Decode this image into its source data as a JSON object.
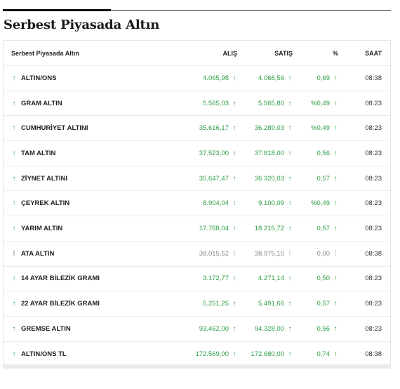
{
  "title": "Serbest Piyasada Altın",
  "colors": {
    "up": "#2e9e45",
    "neutral": "#8a8a8a"
  },
  "table": {
    "headers": {
      "name": "Serbest Piyasada Altın",
      "buy": "ALIŞ",
      "sell": "SATIŞ",
      "pct": "%",
      "time": "SAAT"
    },
    "rows": [
      {
        "name": "ALTIN/ONS",
        "buy": "4.065,98",
        "sell": "4.068,56",
        "pct": "0,69",
        "time": "08:38",
        "trend": "up",
        "icon": "up-arrow-icon"
      },
      {
        "name": "GRAM ALTIN",
        "buy": "5.565,03",
        "sell": "5.565,80",
        "pct": "%0,49",
        "time": "08:23",
        "trend": "up",
        "icon": "up-arrow-icon"
      },
      {
        "name": "CUMHURİYET ALTINI",
        "buy": "35.616,17",
        "sell": "36.289,03",
        "pct": "%0,49",
        "time": "08:23",
        "trend": "up",
        "icon": "up-arrow-icon"
      },
      {
        "name": "TAM ALTIN",
        "buy": "37.523,00",
        "sell": "37.818,00",
        "pct": "0,56",
        "time": "08:23",
        "trend": "up",
        "icon": "up-arrow-icon"
      },
      {
        "name": "ZİYNET ALTINI",
        "buy": "35.647,47",
        "sell": "36.320,03",
        "pct": "0,57",
        "time": "08:23",
        "trend": "up",
        "icon": "up-arrow-icon"
      },
      {
        "name": "ÇEYREK ALTIN",
        "buy": "8.904,04",
        "sell": "9.100,09",
        "pct": "%0,49",
        "time": "08:23",
        "trend": "up",
        "icon": "up-arrow-icon"
      },
      {
        "name": "YARIM ALTIN",
        "buy": "17.768,04",
        "sell": "18.215,72",
        "pct": "0,57",
        "time": "08:23",
        "trend": "up",
        "icon": "up-arrow-icon"
      },
      {
        "name": "ATA ALTIN",
        "buy": "38.015,52",
        "sell": "38.975,10",
        "pct": "0,00",
        "time": "08:38",
        "trend": "neutral",
        "icon": "neutral-icon"
      },
      {
        "name": "14 AYAR BİLEZİK GRAMI",
        "buy": "3.172,77",
        "sell": "4.271,14",
        "pct": "0,50",
        "time": "08:23",
        "trend": "up",
        "icon": "up-arrow-icon"
      },
      {
        "name": "22 AYAR BİLEZİK GRAMI",
        "buy": "5.251,25",
        "sell": "5.491,66",
        "pct": "0,57",
        "time": "08:23",
        "trend": "up",
        "icon": "up-arrow-icon"
      },
      {
        "name": "GREMSE ALTIN",
        "buy": "93.462,00",
        "sell": "94.328,00",
        "pct": "0,56",
        "time": "08:23",
        "trend": "up",
        "icon": "up-arrow-icon"
      },
      {
        "name": "ALTIN/ONS TL",
        "buy": "172.569,00",
        "sell": "172.680,00",
        "pct": "0,74",
        "time": "08:38",
        "trend": "up",
        "icon": "up-arrow-icon"
      }
    ]
  }
}
